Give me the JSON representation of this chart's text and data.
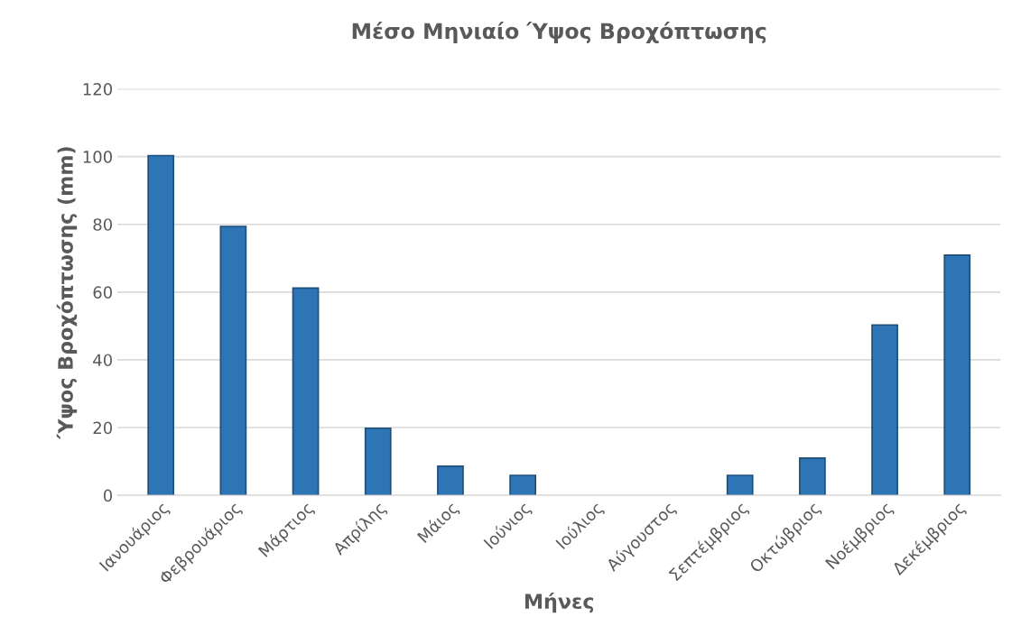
{
  "chart_data": {
    "type": "bar",
    "title": "Μέσο Μηνιαίο Ύψος Βροχόπτωσης",
    "xlabel": "Μήνες",
    "ylabel": "Ύψος Βροχόπτωσης (mm)",
    "categories": [
      "Ιανουάριος",
      "Φεβρουάριος",
      "Μάρτιος",
      "Απρίλης",
      "Μάιος",
      "Ιούνιος",
      "Ιούλιος",
      "Αύγουστος",
      "Σεπτέμβριος",
      "Οκτώβριος",
      "Νοέμβριος",
      "Δεκέμβριος"
    ],
    "values": [
      100.3,
      79.4,
      61.2,
      19.8,
      8.6,
      5.9,
      0,
      0,
      5.9,
      11,
      50.3,
      70.9
    ],
    "color": "#2e75b6",
    "ylim": [
      0,
      120
    ],
    "yticks": [
      0,
      20,
      40,
      60,
      80,
      100,
      120
    ],
    "grid": "y",
    "legend": false
  }
}
